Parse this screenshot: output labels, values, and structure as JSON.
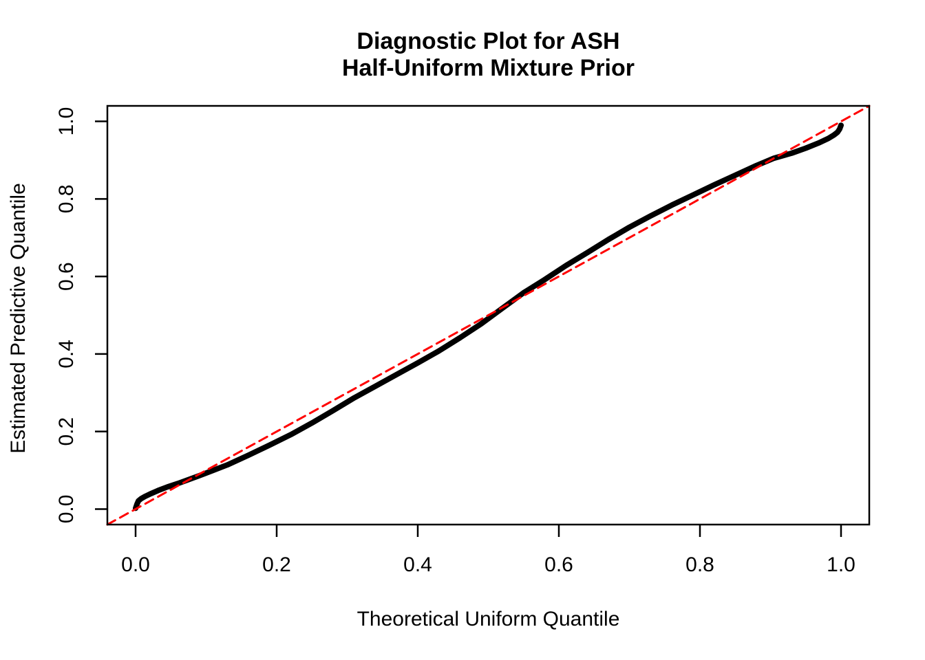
{
  "figure": {
    "background": "#FFFFFF",
    "frame_color": "#000000"
  },
  "chart_data": {
    "type": "line",
    "title_lines": [
      "Diagnostic Plot for ASH",
      "Half-Uniform Mixture Prior"
    ],
    "xlabel": "Theoretical Uniform Quantile",
    "ylabel": "Estimated Predictive Quantile",
    "xlim": [
      -0.04,
      1.04
    ],
    "ylim": [
      -0.04,
      1.04
    ],
    "grid": false,
    "legend": null,
    "x_ticks": {
      "values": [
        0.0,
        0.2,
        0.4,
        0.6,
        0.8,
        1.0
      ],
      "labels": [
        "0.0",
        "0.2",
        "0.4",
        "0.6",
        "0.8",
        "1.0"
      ]
    },
    "y_ticks": {
      "values": [
        0.0,
        0.2,
        0.4,
        0.6,
        0.8,
        1.0
      ],
      "labels": [
        "0.0",
        "0.2",
        "0.4",
        "0.6",
        "0.8",
        "1.0"
      ]
    },
    "series": [
      {
        "name": "estimated-predictive-quantile-curve",
        "style": "solid",
        "color": "#000000",
        "line_width": 8,
        "x": [
          0.0,
          0.002,
          0.004,
          0.008,
          0.014,
          0.022,
          0.032,
          0.045,
          0.06,
          0.075,
          0.09,
          0.11,
          0.13,
          0.16,
          0.19,
          0.22,
          0.25,
          0.28,
          0.31,
          0.34,
          0.37,
          0.4,
          0.43,
          0.46,
          0.49,
          0.52,
          0.55,
          0.58,
          0.61,
          0.64,
          0.67,
          0.7,
          0.73,
          0.76,
          0.79,
          0.82,
          0.85,
          0.88,
          0.905,
          0.93,
          0.95,
          0.968,
          0.982,
          0.99,
          0.995,
          0.998,
          1.0
        ],
        "y": [
          0.002,
          0.013,
          0.021,
          0.027,
          0.033,
          0.04,
          0.048,
          0.057,
          0.066,
          0.076,
          0.086,
          0.1,
          0.114,
          0.139,
          0.165,
          0.192,
          0.222,
          0.254,
          0.287,
          0.317,
          0.347,
          0.377,
          0.408,
          0.442,
          0.478,
          0.518,
          0.558,
          0.592,
          0.628,
          0.661,
          0.695,
          0.727,
          0.756,
          0.784,
          0.81,
          0.836,
          0.861,
          0.886,
          0.905,
          0.918,
          0.931,
          0.944,
          0.956,
          0.965,
          0.972,
          0.98,
          0.99
        ]
      },
      {
        "name": "identity-reference-line",
        "style": "dashed",
        "color": "#FF0000",
        "line_width": 3,
        "x": [
          -0.04,
          1.04
        ],
        "y": [
          -0.04,
          1.04
        ]
      }
    ]
  }
}
